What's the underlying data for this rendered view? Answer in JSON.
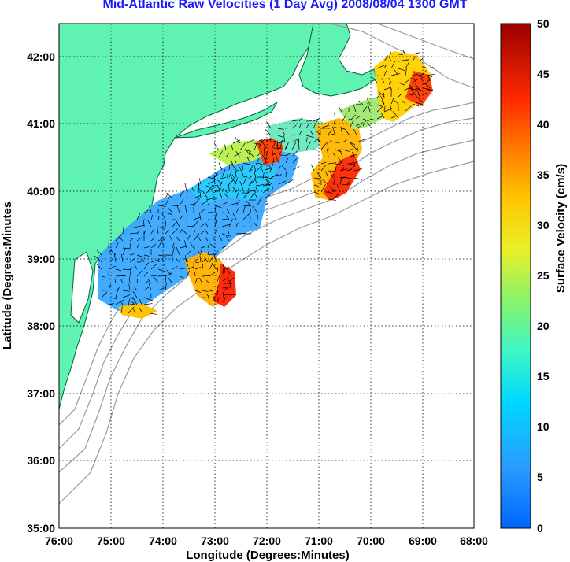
{
  "title": "Mid-Atlantic Raw Velocities (1 Day Avg) 2008/08/04 1300 GMT",
  "xlabel": "Longitude (Degrees:Minutes)",
  "ylabel": "Latitude (Degrees:Minutes",
  "colorbar_label": "Surface Velocity (cm/s)",
  "x_ticks": [
    "76:00",
    "75:00",
    "74:00",
    "73:00",
    "72:00",
    "71:00",
    "70:00",
    "69:00",
    "68:00"
  ],
  "y_ticks": [
    "42:00",
    "41:00",
    "40:00",
    "39:00",
    "38:00",
    "37:00",
    "36:00",
    "35:00"
  ],
  "colorbar_ticks": [
    "50",
    "45",
    "40",
    "35",
    "30",
    "25",
    "20",
    "15",
    "10",
    "5",
    "0"
  ],
  "colors": {
    "land": "#5ff2b0",
    "coastline": "#006040",
    "bathymetry": "#9a9a9a",
    "grid": "#000000",
    "title": "#1a1aff"
  },
  "map_extent": {
    "lon": [
      -76,
      -68
    ],
    "lat": [
      35,
      42.5
    ]
  },
  "colorbar_range": [
    0,
    50
  ],
  "colormap": "jet"
}
